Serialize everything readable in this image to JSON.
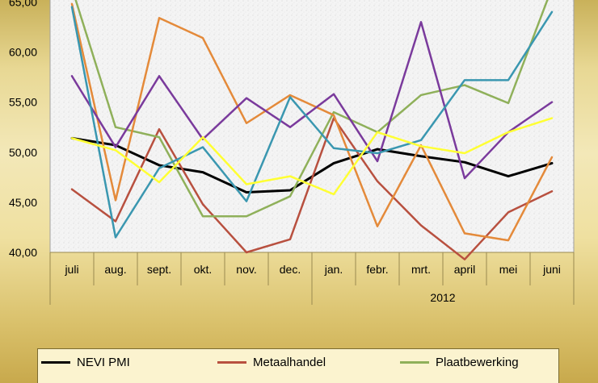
{
  "chart_data": {
    "type": "line",
    "categories": [
      "juli",
      "aug.",
      "sept.",
      "okt.",
      "nov.",
      "dec.",
      "jan.",
      "febr.",
      "mrt.",
      "april",
      "mei",
      "juni"
    ],
    "year_label": "2012",
    "y_ticks": [
      "40,00",
      "45,00",
      "50,00",
      "55,00",
      "60,00",
      "65,00"
    ],
    "ylim": [
      40,
      66
    ],
    "series": [
      {
        "name": "NEVI PMI",
        "color": "#000000",
        "values": [
          51.4,
          50.7,
          48.7,
          48.0,
          46.0,
          46.2,
          48.9,
          50.3,
          49.6,
          49.0,
          47.6,
          48.9
        ]
      },
      {
        "name": "Metaalhandel",
        "color": "#b8503f",
        "values": [
          46.3,
          43.1,
          52.3,
          44.8,
          40.0,
          41.3,
          53.4,
          47.1,
          42.7,
          39.3,
          44.0,
          46.1
        ]
      },
      {
        "name": "Plaatbewerking",
        "color": "#8fb05a",
        "values": [
          66.4,
          52.5,
          51.5,
          43.6,
          43.6,
          45.6,
          54.0,
          52.0,
          55.7,
          56.7,
          54.9,
          66.4
        ]
      },
      {
        "name": "",
        "color": "#e48a3a",
        "values": [
          64.8,
          45.2,
          63.4,
          61.4,
          52.9,
          55.7,
          53.7,
          42.6,
          50.7,
          41.9,
          41.2,
          49.5
        ]
      },
      {
        "name": "",
        "color": "#7a3a9c",
        "values": [
          57.6,
          50.5,
          57.6,
          51.3,
          55.4,
          52.5,
          55.8,
          49.1,
          63.0,
          47.4,
          52.0,
          55.0
        ]
      },
      {
        "name": "",
        "color": "#3a97b0",
        "values": [
          64.5,
          41.5,
          48.4,
          50.5,
          45.1,
          55.5,
          50.4,
          49.9,
          51.2,
          57.2,
          57.2,
          64.0
        ]
      },
      {
        "name": "",
        "color": "#ffff33",
        "values": [
          51.4,
          50.2,
          47.0,
          51.5,
          46.8,
          47.6,
          45.8,
          52.0,
          50.6,
          49.9,
          52.0,
          53.4
        ]
      }
    ],
    "legend_position": "bottom",
    "grid": false
  }
}
